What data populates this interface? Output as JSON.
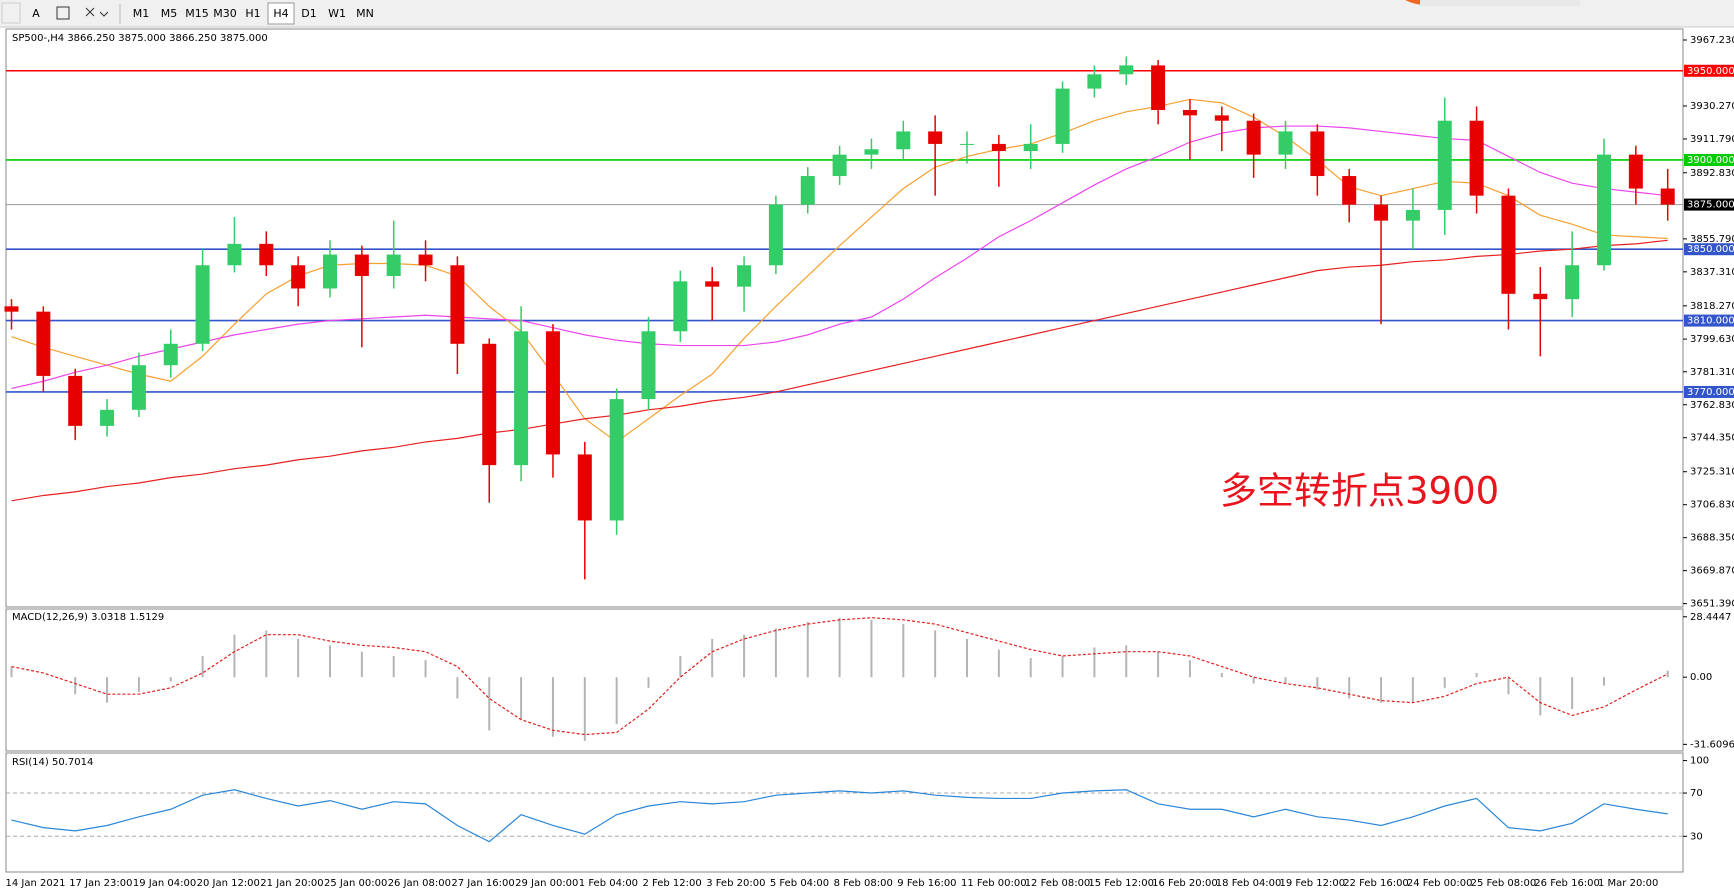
{
  "toolbar": {
    "font_button": "A",
    "timeframes": [
      "M1",
      "M5",
      "M15",
      "M30",
      "H1",
      "H4",
      "D1",
      "W1",
      "MN"
    ],
    "active": "H4"
  },
  "chart_data": [
    {
      "type": "candlestick",
      "title": "SP500-,H4  3866.250 3875.000 3866.250 3875.000",
      "annotation": "多空转折点3900",
      "annotation_color": "#e8141e",
      "up_color": "#33cc66",
      "down_color": "#e60000",
      "categories": [
        "14 Jan 2021",
        null,
        "17 Jan 23:00",
        null,
        "19 Jan 04:00",
        null,
        "20 Jan 12:00",
        null,
        "21 Jan 20:00",
        null,
        "25 Jan 00:00",
        null,
        "26 Jan 08:00",
        null,
        "27 Jan 16:00",
        null,
        "29 Jan 00:00",
        null,
        "1 Feb 04:00",
        null,
        "2 Feb 12:00",
        null,
        "3 Feb 20:00",
        null,
        "5 Feb 04:00",
        null,
        "8 Feb 08:00",
        null,
        "9 Feb 16:00",
        null,
        "11 Feb 00:00",
        null,
        "12 Feb 08:00",
        null,
        "15 Feb 12:00",
        null,
        "16 Feb 20:00",
        null,
        "18 Feb 04:00",
        null,
        "19 Feb 12:00",
        null,
        "22 Feb 16:00",
        null,
        "24 Feb 00:00",
        null,
        "25 Feb 08:00",
        null,
        "26 Feb 16:00",
        null,
        "1 Mar 20:00",
        null,
        null
      ],
      "open": [
        3818,
        3815,
        3779,
        3751,
        3760,
        3785,
        3797,
        3841,
        3853,
        3841,
        3828,
        3847,
        3835,
        3847,
        3841,
        3797,
        3729,
        3804,
        3735,
        3698,
        3766,
        3804,
        3832,
        3829,
        3841,
        3875,
        3891,
        3903,
        3906,
        3916,
        3909,
        3909,
        3905,
        3909,
        3940,
        3948,
        3953,
        3928,
        3925,
        3922,
        3903,
        3916,
        3891,
        3875,
        3866,
        3872,
        3922,
        3880,
        3825,
        3822,
        3841,
        3903,
        3884
      ],
      "high": [
        3822,
        3818,
        3783,
        3766,
        3792,
        3805,
        3850,
        3868,
        3860,
        3846,
        3855,
        3852,
        3866,
        3855,
        3846,
        3800,
        3818,
        3808,
        3742,
        3772,
        3812,
        3838,
        3840,
        3846,
        3880,
        3896,
        3908,
        3912,
        3922,
        3925,
        3916,
        3914,
        3920,
        3944,
        3953,
        3958,
        3956,
        3934,
        3930,
        3926,
        3922,
        3920,
        3895,
        3880,
        3884,
        3935,
        3930,
        3884,
        3840,
        3860,
        3912,
        3908,
        3895
      ],
      "low": [
        3805,
        3770,
        3743,
        3745,
        3756,
        3778,
        3793,
        3837,
        3835,
        3818,
        3823,
        3795,
        3828,
        3832,
        3780,
        3708,
        3720,
        3722,
        3665,
        3690,
        3760,
        3798,
        3810,
        3815,
        3836,
        3870,
        3886,
        3895,
        3900,
        3880,
        3898,
        3885,
        3895,
        3904,
        3935,
        3942,
        3920,
        3900,
        3905,
        3890,
        3895,
        3880,
        3865,
        3808,
        3850,
        3858,
        3870,
        3805,
        3790,
        3812,
        3838,
        3875,
        3866
      ],
      "close": [
        3815,
        3779,
        3751,
        3760,
        3785,
        3797,
        3841,
        3853,
        3841,
        3828,
        3847,
        3835,
        3847,
        3841,
        3797,
        3729,
        3804,
        3735,
        3698,
        3766,
        3804,
        3832,
        3829,
        3841,
        3875,
        3891,
        3903,
        3906,
        3916,
        3909,
        3909,
        3905,
        3909,
        3940,
        3948,
        3953,
        3928,
        3925,
        3922,
        3903,
        3916,
        3891,
        3875,
        3866,
        3872,
        3922,
        3880,
        3825,
        3822,
        3841,
        3903,
        3884,
        3875
      ],
      "overlays": [
        {
          "color": "#f5a030",
          "values": [
            3801,
            3795,
            3790,
            3785,
            3780,
            3776,
            3790,
            3808,
            3825,
            3835,
            3841,
            3842,
            3842,
            3841,
            3835,
            3818,
            3804,
            3780,
            3755,
            3742,
            3755,
            3768,
            3780,
            3800,
            3818,
            3835,
            3852,
            3868,
            3884,
            3896,
            3902,
            3906,
            3909,
            3915,
            3922,
            3927,
            3930,
            3934,
            3932,
            3924,
            3913,
            3900,
            3885,
            3880,
            3884,
            3888,
            3887,
            3880,
            3869,
            3864,
            3858,
            3857,
            3856
          ]
        },
        {
          "color": "#ee44ee",
          "values": [
            3772,
            3776,
            3781,
            3785,
            3790,
            3794,
            3798,
            3802,
            3805,
            3808,
            3810,
            3811,
            3812,
            3813,
            3812,
            3811,
            3810,
            3806,
            3802,
            3799,
            3797,
            3796,
            3796,
            3796,
            3798,
            3802,
            3808,
            3812,
            3822,
            3834,
            3845,
            3857,
            3866,
            3876,
            3886,
            3895,
            3902,
            3910,
            3915,
            3918,
            3919,
            3919,
            3918,
            3916,
            3914,
            3912,
            3911,
            3902,
            3893,
            3887,
            3884,
            3882,
            3880
          ]
        },
        {
          "color": "#e82020",
          "values": [
            3709,
            3712,
            3714,
            3717,
            3719,
            3722,
            3724,
            3727,
            3729,
            3732,
            3734,
            3737,
            3739,
            3742,
            3744,
            3747,
            3749,
            3752,
            3755,
            3757,
            3760,
            3762,
            3765,
            3767,
            3770,
            3774,
            3778,
            3782,
            3786,
            3790,
            3794,
            3798,
            3802,
            3806,
            3810,
            3814,
            3818,
            3822,
            3826,
            3830,
            3834,
            3838,
            3840,
            3841,
            3843,
            3844,
            3846,
            3847,
            3849,
            3850,
            3852,
            3853,
            3855
          ]
        }
      ],
      "levels": [
        {
          "value": 3950,
          "label": "3950.000",
          "color": "#ff0000"
        },
        {
          "value": 3900,
          "label": "3900.000",
          "color": "#00cc00"
        },
        {
          "value": 3875,
          "label": "3875.000",
          "color": "#999999",
          "label_bg": "#000000"
        },
        {
          "value": 3850,
          "label": "3850.000",
          "color": "#3355cc"
        },
        {
          "value": 3810,
          "label": "3810.000",
          "color": "#3355cc"
        },
        {
          "value": 3770,
          "label": "3770.000",
          "color": "#3355cc"
        }
      ],
      "ylim": [
        3649.5,
        3973.4
      ],
      "yticks": [
        {
          "value": 3967.23,
          "label": "3967.230"
        },
        {
          "value": 3930.27,
          "label": "3930.270"
        },
        {
          "value": 3911.79,
          "label": "3911.790"
        },
        {
          "value": 3892.83,
          "label": "3892.830"
        },
        {
          "value": 3855.79,
          "label": "3855.790"
        },
        {
          "value": 3837.31,
          "label": "3837.310"
        },
        {
          "value": 3818.27,
          "label": "3818.270"
        },
        {
          "value": 3799.63,
          "label": "3799.630"
        },
        {
          "value": 3781.31,
          "label": "3781.310"
        },
        {
          "value": 3762.83,
          "label": "3762.830"
        },
        {
          "value": 3744.35,
          "label": "3744.350"
        },
        {
          "value": 3725.31,
          "label": "3725.310"
        },
        {
          "value": 3706.83,
          "label": "3706.830"
        },
        {
          "value": 3688.35,
          "label": "3688.350"
        },
        {
          "value": 3669.87,
          "label": "3669.870"
        },
        {
          "value": 3651.39,
          "label": "3651.390"
        }
      ]
    },
    {
      "type": "macd",
      "title": "MACD(12,26,9) 3.0318 1.5129",
      "color": "#b4b4b4",
      "signal_color": "#e02020",
      "values": [
        5,
        0,
        -8,
        -12,
        -7,
        -2,
        10,
        20,
        22,
        18,
        15,
        12,
        10,
        8,
        -10,
        -25,
        -20,
        -28,
        -30,
        -22,
        -5,
        10,
        18,
        20,
        23,
        26,
        28,
        27,
        25,
        22,
        18,
        13,
        9,
        10,
        14,
        15,
        12,
        8,
        2,
        -3,
        -3,
        -6,
        -10,
        -12,
        -12,
        -5,
        2,
        -8,
        -18,
        -15,
        -4,
        0,
        3.0318
      ],
      "signal": [
        5,
        2,
        -3,
        -8,
        -8,
        -5,
        2,
        12,
        20,
        20,
        17,
        15,
        14,
        12,
        5,
        -10,
        -20,
        -25,
        -27,
        -26,
        -15,
        0,
        12,
        18,
        22,
        25,
        27,
        28,
        27,
        25,
        21,
        17,
        13,
        10,
        11,
        12,
        12,
        10,
        5,
        0,
        -3,
        -5,
        -8,
        -11,
        -12,
        -9,
        -3,
        0,
        -12,
        -18,
        -14,
        -6,
        1.5129
      ],
      "ylim": [
        -34.74,
        32.1
      ],
      "yticks": [
        28.4447,
        {
          "value": 0,
          "label": "0.00"
        },
        -31.6096
      ]
    },
    {
      "type": "line",
      "title": "RSI(14) 50.7014",
      "color": "#2a86d8",
      "values": [
        45,
        38,
        35,
        40,
        48,
        55,
        68,
        73,
        65,
        58,
        63,
        55,
        62,
        60,
        40,
        25,
        50,
        40,
        32,
        50,
        58,
        62,
        60,
        62,
        68,
        70,
        72,
        70,
        72,
        68,
        66,
        65,
        65,
        70,
        72,
        73,
        60,
        55,
        55,
        48,
        55,
        48,
        45,
        40,
        48,
        58,
        65,
        38,
        35,
        42,
        60,
        55,
        50.7014
      ],
      "levels": [
        70,
        30
      ],
      "ylim": [
        -3,
        107
      ],
      "yticks": [
        100,
        70,
        30
      ]
    }
  ]
}
